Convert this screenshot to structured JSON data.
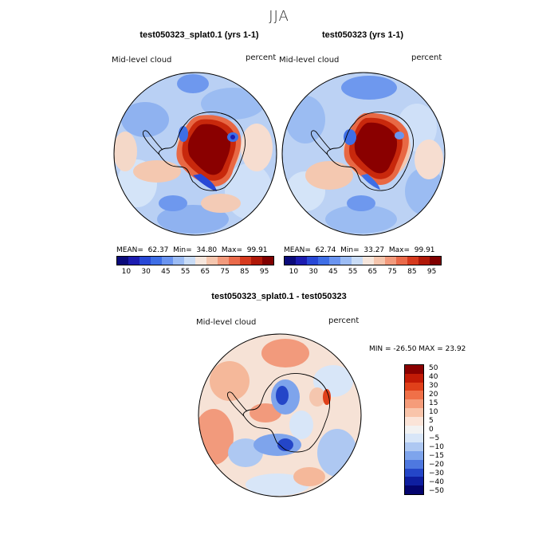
{
  "season": "JJA",
  "maps": [
    {
      "title": "test050323_splat0.1 (yrs 1-1)",
      "var_label": "Mid-level cloud",
      "units": "percent",
      "stats": {
        "mean_label": "MEAN=",
        "mean": "62.37",
        "min_label": "Min=",
        "min": "34.80",
        "max_label": "Max=",
        "max": "99.91"
      }
    },
    {
      "title": "test050323 (yrs 1-1)",
      "var_label": "Mid-level cloud",
      "units": "percent",
      "stats": {
        "mean_label": "MEAN=",
        "mean": "62.74",
        "min_label": "Min=",
        "min": "33.27",
        "max_label": "Max=",
        "max": "99.91"
      }
    },
    {
      "title": "test050323_splat0.1 - test050323",
      "var_label": "Mid-level cloud",
      "units": "percent",
      "stats_line": "MIN = -26.50 MAX =  23.92"
    }
  ],
  "colorbar_main": {
    "colors": [
      "#0a0a7a",
      "#1c1cb0",
      "#2848d6",
      "#3e6ee6",
      "#6a94f0",
      "#9cbcf4",
      "#c9dcf6",
      "#f6e6dc",
      "#f5c6ae",
      "#f29a7c",
      "#ea6a4a",
      "#d63a1e",
      "#b01808",
      "#800000"
    ],
    "labels": [
      "10",
      "30",
      "45",
      "55",
      "65",
      "75",
      "85",
      "95"
    ]
  },
  "colorbar_diff": {
    "colors": [
      "#8a0000",
      "#c21a06",
      "#e0401a",
      "#f07048",
      "#f59c7a",
      "#f9c4aa",
      "#fbe4d8",
      "#f2f2f2",
      "#d8e6f8",
      "#aec8f2",
      "#7ea4ec",
      "#4e78e0",
      "#2446c8",
      "#0e1ea0",
      "#04046e"
    ],
    "labels": [
      "50",
      "40",
      "30",
      "20",
      "15",
      "10",
      "5",
      "0",
      "−5",
      "−10",
      "−15",
      "−20",
      "−30",
      "−40",
      "−50"
    ]
  }
}
